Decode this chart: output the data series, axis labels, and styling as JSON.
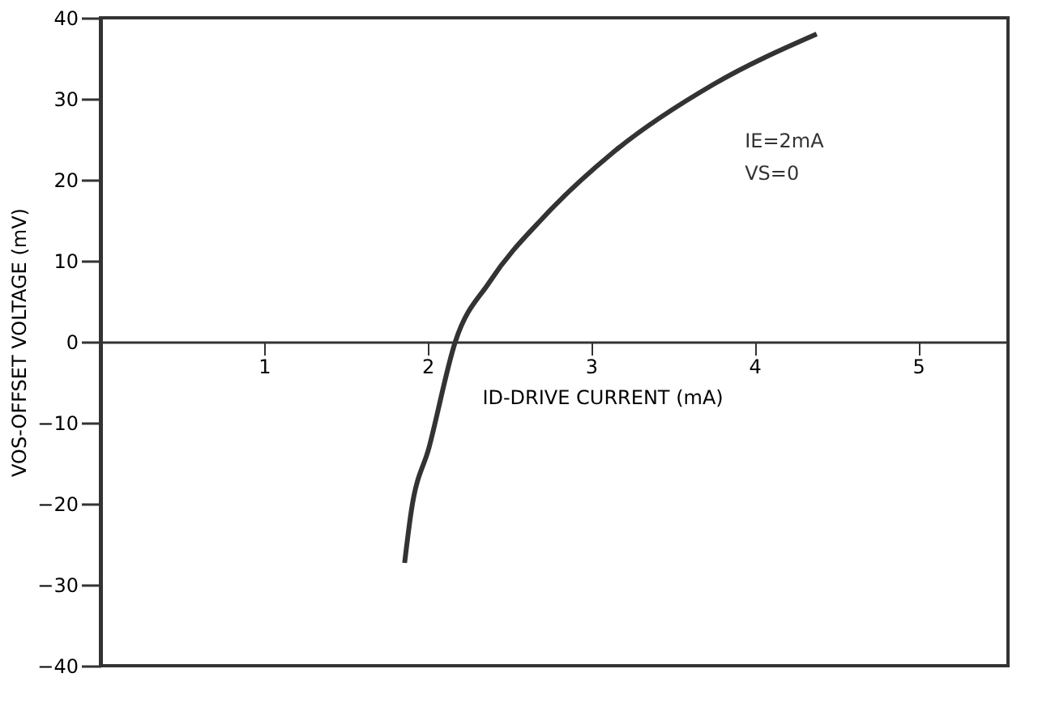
{
  "chart_data": {
    "type": "line",
    "xlabel": "ID-DRIVE CURRENT (mA)",
    "ylabel": "VOS-OFFSET VOLTAGE (mV)",
    "x": [
      1.86,
      1.9,
      2.01,
      2.17,
      2.38,
      2.72,
      3.13,
      3.75,
      4.38
    ],
    "series": [
      {
        "color": "#333333",
        "values": [
          -27.3,
          -21,
          -13,
          0,
          7.4,
          15.6,
          23.3,
          31.8,
          38
        ]
      }
    ],
    "xlim": [
      0,
      5.55
    ],
    "xticks": [
      1,
      2,
      3,
      4,
      5
    ],
    "ylim": [
      -40,
      40
    ],
    "yticks": [
      -40,
      -30,
      -20,
      -10,
      0,
      10,
      20,
      30,
      40
    ],
    "annotations": [
      "IE=2mA",
      "VS=0"
    ],
    "grid": false,
    "marker": "none",
    "line_style": "solid"
  }
}
